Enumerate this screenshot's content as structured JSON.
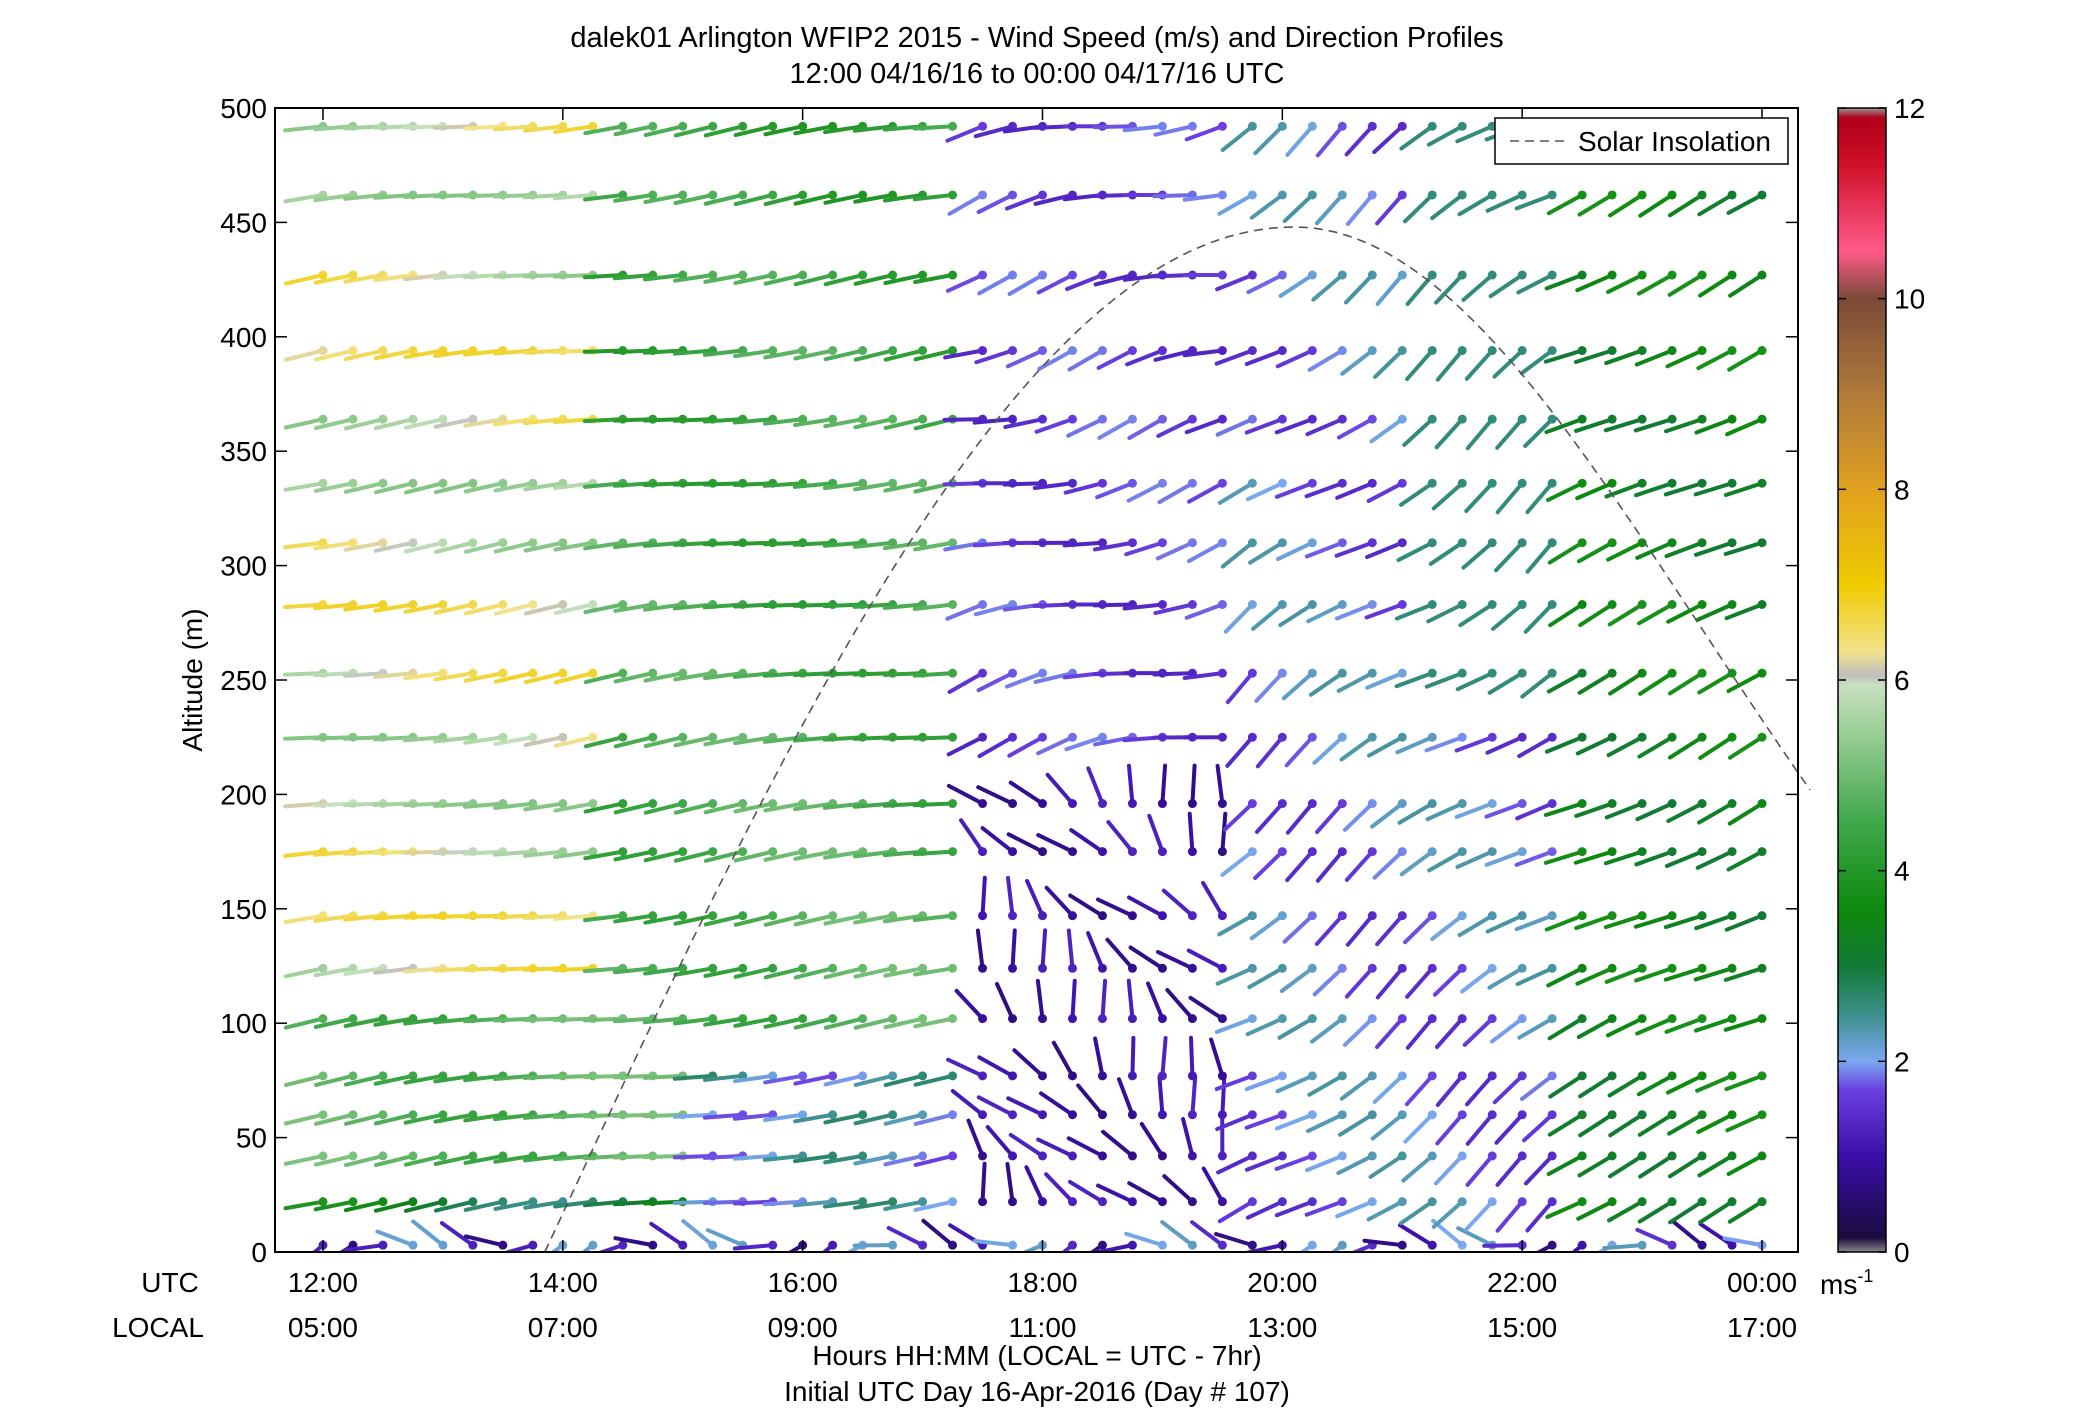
{
  "chart_data": {
    "type": "wind-barb-profile",
    "title_line1": "dalek01 Arlington WFIP2 2015 - Wind Speed (m/s) and Direction Profiles",
    "title_line2": "12:00 04/16/16 to 00:00 04/17/16  UTC",
    "ylabel": "Altitude (m)",
    "xlabel": "Hours HH:MM  (LOCAL = UTC - 7hr)",
    "xlabel2": "Initial UTC Day 16-Apr-2016 (Day # 107)",
    "row_label_utc": "UTC",
    "row_label_local": "LOCAL",
    "ylim": [
      0,
      500
    ],
    "yticks": [
      0,
      50,
      100,
      150,
      200,
      250,
      300,
      350,
      400,
      450,
      500
    ],
    "xlim_hours": [
      11.6,
      24.3
    ],
    "xticks_hours": [
      12,
      14,
      16,
      18,
      20,
      22,
      24
    ],
    "xtick_labels_utc": [
      "12:00",
      "14:00",
      "16:00",
      "18:00",
      "20:00",
      "22:00",
      "00:00"
    ],
    "xtick_labels_local": [
      "05:00",
      "07:00",
      "09:00",
      "11:00",
      "13:00",
      "15:00",
      "17:00"
    ],
    "colorbar": {
      "range": [
        0,
        12
      ],
      "ticks": [
        0,
        2,
        4,
        6,
        8,
        10,
        12
      ],
      "unit_label": "ms",
      "unit_exponent": "-1"
    },
    "legend": {
      "entry": "Solar Insolation",
      "position": "top-right"
    },
    "altitudes": [
      3,
      22,
      42,
      60,
      77,
      102,
      124,
      147,
      175,
      196,
      225,
      253,
      283,
      310,
      336,
      364,
      394,
      427,
      462,
      492
    ],
    "barb_time_step_hours": 0.25,
    "barb_time_start_hours": 12.0,
    "barb_time_end_hours": 24.0,
    "solar_insolation_curve": {
      "start_hour": 13.85,
      "peak_hour": 20.1,
      "peak_altitude": 448,
      "end_hour": 24.4,
      "end_altitude": 202
    },
    "wind_regimes": [
      {
        "hours": [
          12.0,
          17.5
        ],
        "speed": 4.8,
        "direction_deg": 265,
        "note": "westerly green/yellow"
      },
      {
        "hours": [
          17.5,
          19.7
        ],
        "speed": 1.2,
        "direction_deg": 340,
        "note": "weak northerly below 200 m"
      },
      {
        "hours": [
          19.7,
          22.5
        ],
        "speed": 2.0,
        "direction_deg": 240,
        "note": "southwesterly blue/purple"
      },
      {
        "hours": [
          22.5,
          24.0
        ],
        "speed": 3.6,
        "direction_deg": 245,
        "note": "southwesterly green"
      }
    ],
    "colors": {
      "axis": "#000000",
      "solar_curve": "#555555",
      "colorbar_stops": [
        {
          "v": 0.0,
          "c": "#888888"
        },
        {
          "v": 0.15,
          "c": "#1b0b3f"
        },
        {
          "v": 1.0,
          "c": "#3a0fa8"
        },
        {
          "v": 1.7,
          "c": "#6a3fe0"
        },
        {
          "v": 2.0,
          "c": "#7aa8f0"
        },
        {
          "v": 2.5,
          "c": "#3b8f8a"
        },
        {
          "v": 3.0,
          "c": "#137a35"
        },
        {
          "v": 3.6,
          "c": "#0d8a0d"
        },
        {
          "v": 4.5,
          "c": "#3fa84a"
        },
        {
          "v": 5.5,
          "c": "#9fd09a"
        },
        {
          "v": 5.95,
          "c": "#c8e0c0"
        },
        {
          "v": 6.05,
          "c": "#bfbfbf"
        },
        {
          "v": 6.3,
          "c": "#f2e28a"
        },
        {
          "v": 7.0,
          "c": "#f0cc00"
        },
        {
          "v": 8.0,
          "c": "#e0a020"
        },
        {
          "v": 9.0,
          "c": "#b07a3a"
        },
        {
          "v": 10.0,
          "c": "#7a4a38"
        },
        {
          "v": 10.5,
          "c": "#ff5a8a"
        },
        {
          "v": 11.4,
          "c": "#d0102a"
        },
        {
          "v": 11.9,
          "c": "#b00018"
        },
        {
          "v": 12.0,
          "c": "#999999"
        }
      ]
    }
  }
}
